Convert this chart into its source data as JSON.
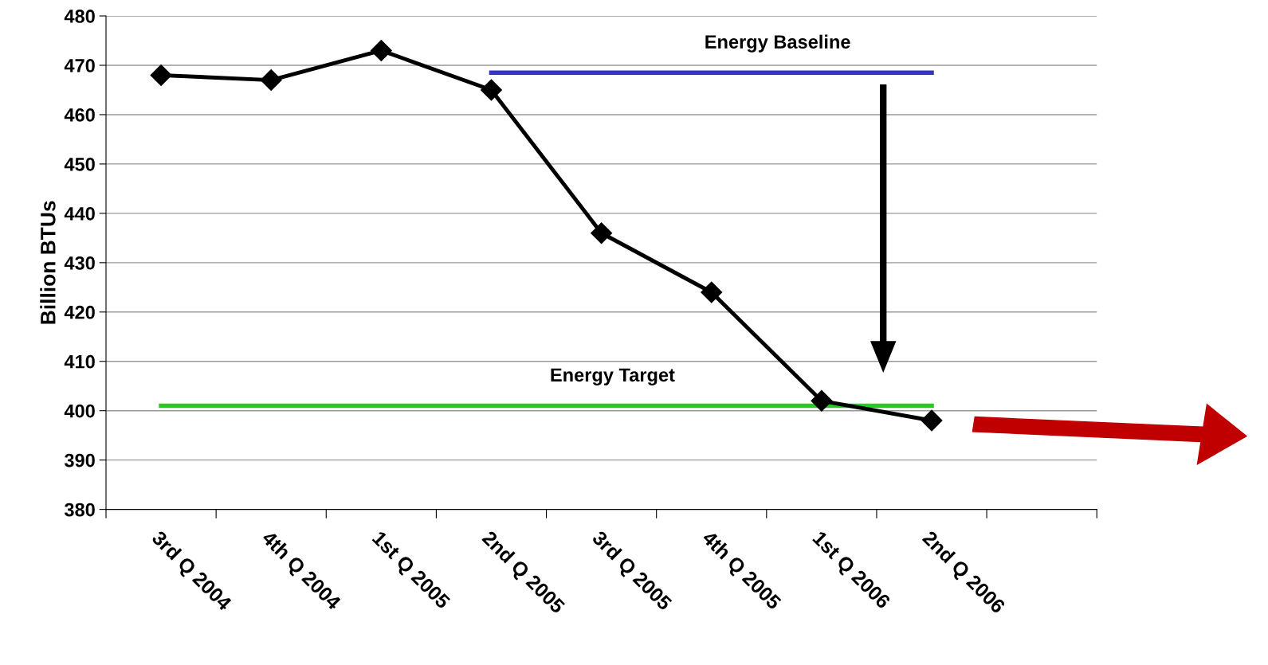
{
  "chart_data": {
    "type": "line",
    "ylabel": "Billion BTUs",
    "categories": [
      "3rd Q 2004",
      "4th Q 2004",
      "1st Q 2005",
      "2nd Q 2005",
      "3rd Q 2005",
      "4th Q 2005",
      "1st Q 2006",
      "2nd Q 2006",
      null
    ],
    "series": [
      {
        "name": "Energy Baseline",
        "color": "#3333cc",
        "marker": "none",
        "values": [
          null,
          null,
          null,
          468.5,
          null,
          null,
          null,
          468.5,
          null
        ]
      },
      {
        "name": "Energy Target",
        "color": "#22cc22",
        "marker": "none",
        "values": [
          401,
          null,
          null,
          null,
          null,
          null,
          null,
          401,
          null
        ]
      },
      {
        "color": "#000000",
        "marker": "diamond",
        "values": [
          468,
          467,
          473,
          465,
          436,
          424,
          402,
          398,
          null
        ]
      }
    ],
    "ylim": [
      380,
      480
    ],
    "yticks": [
      380,
      390,
      400,
      410,
      420,
      430,
      440,
      450,
      460,
      470,
      480
    ],
    "grid": "y",
    "legend": false
  }
}
